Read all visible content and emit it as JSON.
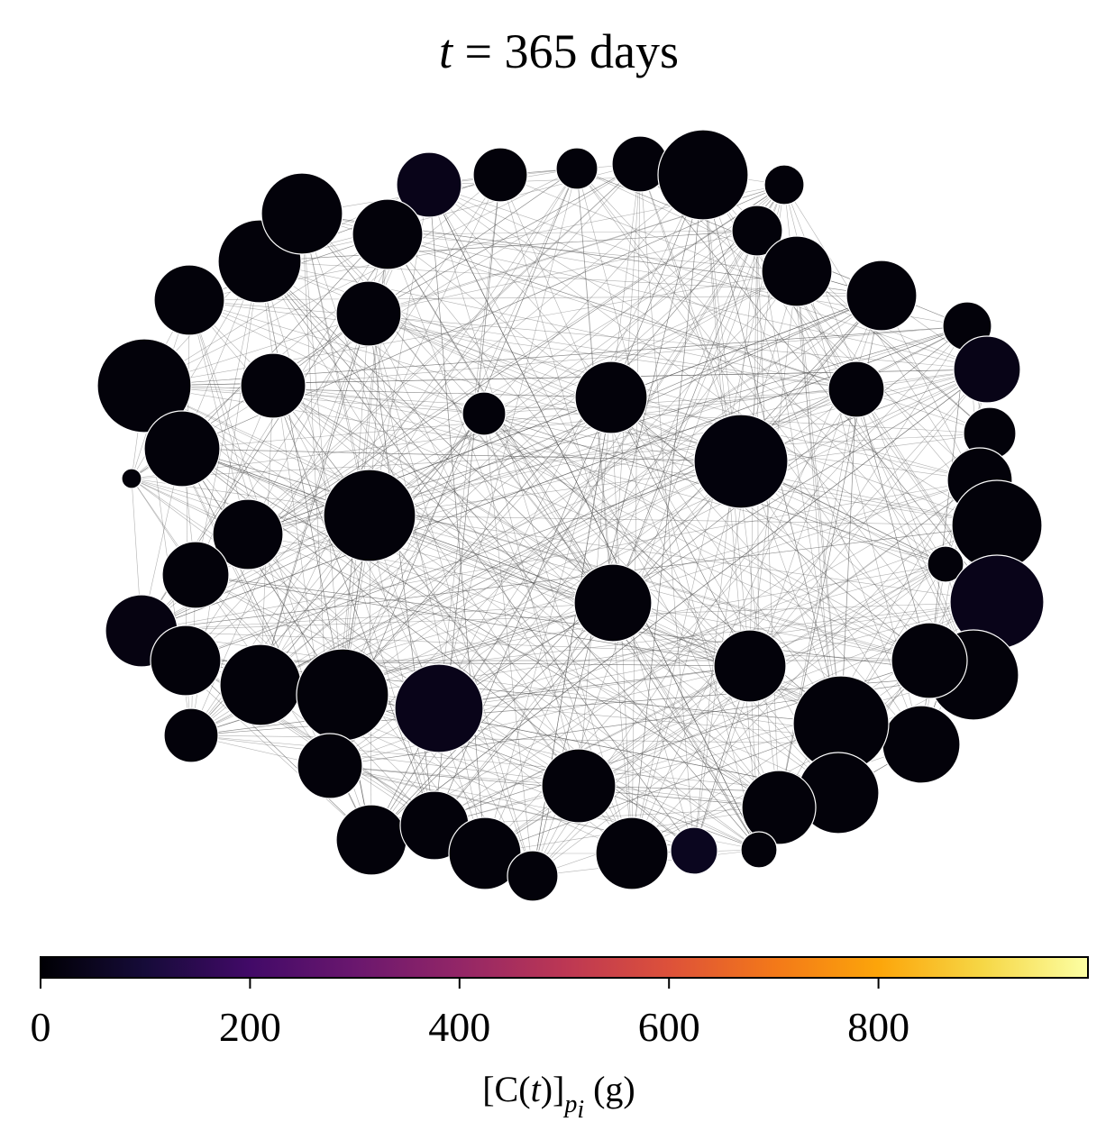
{
  "title": {
    "var": "t",
    "rest": " = 365 days"
  },
  "colorbar": {
    "min": 0,
    "max": 1000,
    "ticks": [
      {
        "value": 0,
        "label": "0"
      },
      {
        "value": 200,
        "label": "200"
      },
      {
        "value": 400,
        "label": "400"
      },
      {
        "value": 600,
        "label": "600"
      },
      {
        "value": 800,
        "label": "800"
      }
    ],
    "colormap": "inferno",
    "label_main": "[C(",
    "label_var": "t",
    "label_close": ")]",
    "label_sub": "p",
    "label_subsub": "i",
    "label_unit": " (g)"
  },
  "network": {
    "edge_color": "#555555",
    "node_fill_default": "#03020a",
    "node_outline": "#ffffff",
    "nodes": [
      {
        "id": 0,
        "value": 0
      },
      {
        "id": 1,
        "value": 0
      },
      {
        "id": 2,
        "value": 0
      },
      {
        "id": 3,
        "value": 0
      },
      {
        "id": 4,
        "value": 0
      },
      {
        "id": 5,
        "value": 0
      },
      {
        "id": 6,
        "value": 40
      },
      {
        "id": 7,
        "value": 0
      },
      {
        "id": 8,
        "value": 0
      },
      {
        "id": 9,
        "value": 0
      },
      {
        "id": 10,
        "value": 0
      },
      {
        "id": 11,
        "value": 0
      },
      {
        "id": 12,
        "value": 0
      },
      {
        "id": 13,
        "value": 0
      },
      {
        "id": 14,
        "value": 0
      },
      {
        "id": 15,
        "value": 0
      },
      {
        "id": 16,
        "value": 0
      },
      {
        "id": 17,
        "value": 35
      },
      {
        "id": 18,
        "value": 0
      },
      {
        "id": 19,
        "value": 0
      },
      {
        "id": 20,
        "value": 0
      },
      {
        "id": 21,
        "value": 0
      },
      {
        "id": 22,
        "value": 40
      },
      {
        "id": 23,
        "value": 0
      },
      {
        "id": 24,
        "value": 0
      },
      {
        "id": 25,
        "value": 0
      },
      {
        "id": 26,
        "value": 0
      },
      {
        "id": 27,
        "value": 0
      },
      {
        "id": 28,
        "value": 0
      },
      {
        "id": 29,
        "value": 0
      },
      {
        "id": 30,
        "value": 50
      },
      {
        "id": 31,
        "value": 0
      },
      {
        "id": 32,
        "value": 0
      },
      {
        "id": 33,
        "value": 15
      },
      {
        "id": 34,
        "value": 0
      },
      {
        "id": 35,
        "value": 0
      },
      {
        "id": 36,
        "value": 0
      },
      {
        "id": 37,
        "value": 0
      },
      {
        "id": 38,
        "value": 0
      },
      {
        "id": 39,
        "value": 0
      },
      {
        "id": 40,
        "value": 0
      },
      {
        "id": 41,
        "value": 0
      },
      {
        "id": 42,
        "value": 0
      },
      {
        "id": 43,
        "value": 25
      },
      {
        "id": 44,
        "value": 0
      },
      {
        "id": 45,
        "value": 0
      },
      {
        "id": 46,
        "value": 0
      },
      {
        "id": 47,
        "value": 40
      },
      {
        "id": 48,
        "value": 0
      },
      {
        "id": 49,
        "value": 0
      },
      {
        "id": 50,
        "value": 0
      },
      {
        "id": 51,
        "value": 0
      },
      {
        "id": 52,
        "value": 0
      },
      {
        "id": 53,
        "value": 0
      },
      {
        "id": 54,
        "value": 0
      },
      {
        "id": 55,
        "value": 0
      },
      {
        "id": 56,
        "value": 0
      },
      {
        "id": 57,
        "value": 0
      },
      {
        "id": 58,
        "value": 0
      },
      {
        "id": 59,
        "value": 0
      },
      {
        "id": 60,
        "value": 0
      },
      {
        "id": 61,
        "value": 0
      },
      {
        "id": 62,
        "value": 0
      },
      {
        "id": 63,
        "value": 0
      }
    ]
  }
}
